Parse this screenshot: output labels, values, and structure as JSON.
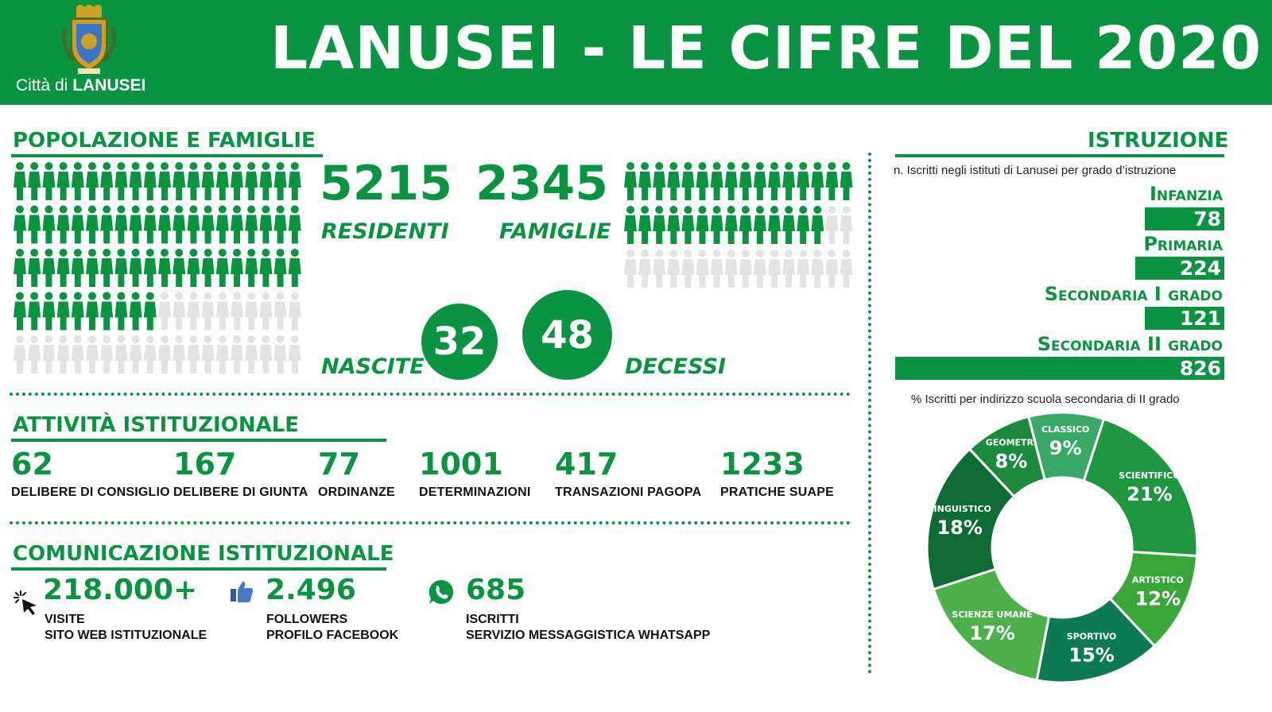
{
  "header": {
    "city_prefix": "Città di",
    "city_name": "LANUSEI",
    "title": "LANUSEI - LE CIFRE DEL 2020"
  },
  "popolazione": {
    "section_title": "POPOLAZIONE  E  FAMIGLIE",
    "residenti_value": "5215",
    "residenti_label": "RESIDENTI",
    "famiglie_value": "2345",
    "famiglie_label": "FAMIGLIE",
    "nascite_label": "NASCITE",
    "nascite_value": "32",
    "decessi_value": "48",
    "decessi_label": "DECESSI",
    "residenti_pictogram_filled_fraction": 0.7,
    "famiglie_pictogram_filled_fraction": 0.63
  },
  "attivita": {
    "section_title": "ATTIVITÀ ISTITUZIONALE",
    "items": [
      {
        "value": "62",
        "label": "DELIBERE DI CONSIGLIO"
      },
      {
        "value": "167",
        "label": "DELIBERE DI GIUNTA"
      },
      {
        "value": "77",
        "label": "ORDINANZE"
      },
      {
        "value": "1001",
        "label": "DETERMINAZIONI"
      },
      {
        "value": "417",
        "label": "TRANSAZIONI PAGOPA"
      },
      {
        "value": "1233",
        "label": "PRATICHE SUAPE"
      }
    ]
  },
  "comunicazione": {
    "section_title": "COMUNICAZIONE ISTITUZIONALE",
    "items": [
      {
        "icon": "cursor-click-icon",
        "value": "218.000+",
        "line1": "VISITE",
        "line2": "SITO WEB ISTITUZIONALE"
      },
      {
        "icon": "thumbs-up-icon",
        "value": "2.496",
        "line1": "FOLLOWERS",
        "line2": "PROFILO FACEBOOK"
      },
      {
        "icon": "whatsapp-icon",
        "value": "685",
        "line1": "ISCRITTI",
        "line2": "SERVIZIO MESSAGGISTICA WHATSAPP"
      }
    ]
  },
  "istruzione": {
    "section_title": "ISTRUZIONE",
    "subtitle": "n. Iscritti negli istituti di Lanusei per grado d’istruzione",
    "grades": [
      {
        "label": "Infanzia",
        "value": 78
      },
      {
        "label": "Primaria",
        "value": 224
      },
      {
        "label": "Secondaria I grado",
        "value": 121
      },
      {
        "label": "Secondaria II grado",
        "value": 826
      }
    ],
    "donut_title": "% Iscritti per indirizzo scuola secondaria di II grado"
  },
  "chart_data": [
    {
      "type": "bar",
      "categories": [
        "Infanzia",
        "Primaria",
        "Secondaria I grado",
        "Secondaria II grado"
      ],
      "values": [
        78,
        224,
        121,
        826
      ],
      "title": "n. Iscritti negli istituti di Lanusei per grado d’istruzione"
    },
    {
      "type": "pie",
      "title": "% Iscritti per indirizzo scuola secondaria di II grado",
      "categories": [
        "CLASSICO",
        "SCIENTIFICO",
        "ARTISTICO",
        "SPORTIVO",
        "SCIENZE UMANE",
        "LINGUISTICO",
        "GEOMETRI"
      ],
      "values": [
        9,
        21,
        12,
        15,
        17,
        18,
        8
      ],
      "labels": [
        "9%",
        "21%",
        "12%",
        "15%",
        "17%",
        "18%",
        "8%"
      ],
      "colors": [
        "#3aa866",
        "#1f9640",
        "#3aa63a",
        "#0d7a55",
        "#4db04a",
        "#0e6b34",
        "#1b8a3a"
      ]
    }
  ],
  "colors": {
    "accent": "#0a9441",
    "inactive": "#e3e3e3"
  }
}
